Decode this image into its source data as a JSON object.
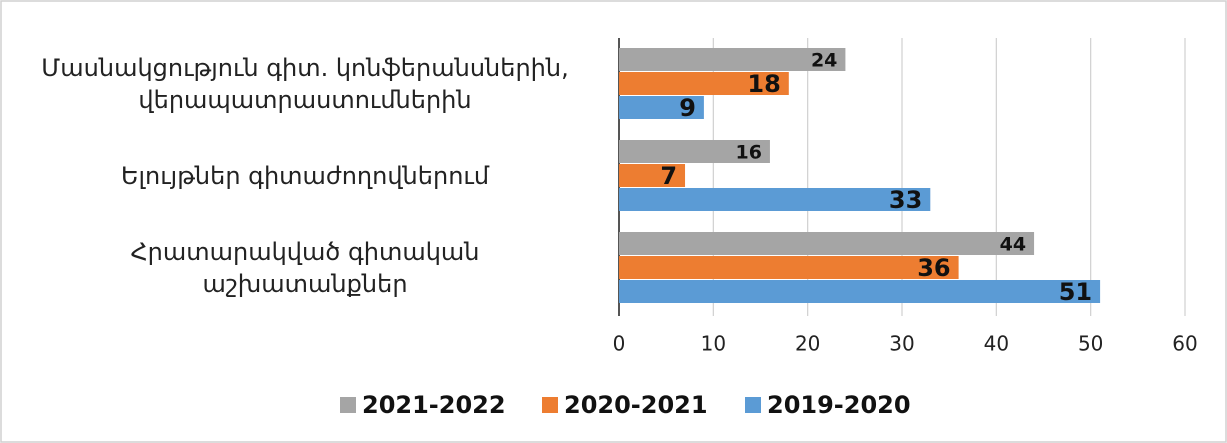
{
  "chart_data": {
    "type": "bar",
    "orientation": "horizontal",
    "categories": [
      "Մասնակցություն գիտ. կոնֆերանսներին,\nվերապատրաստումներին",
      "Ելույթներ գիտաժողովներում",
      "Հրատարակված գիտական\nաշխատանքներ"
    ],
    "series": [
      {
        "name": "2021-2022",
        "color": "#a5a5a5",
        "values": [
          24,
          16,
          44
        ]
      },
      {
        "name": "2020-2021",
        "color": "#ed7d31",
        "values": [
          18,
          7,
          36
        ]
      },
      {
        "name": "2019-2020",
        "color": "#5b9bd5",
        "values": [
          9,
          33,
          51
        ]
      }
    ],
    "xlim": [
      0,
      60
    ],
    "xticks": [
      0,
      10,
      20,
      30,
      40,
      50,
      60
    ],
    "grid": true,
    "legend": "bottom"
  }
}
